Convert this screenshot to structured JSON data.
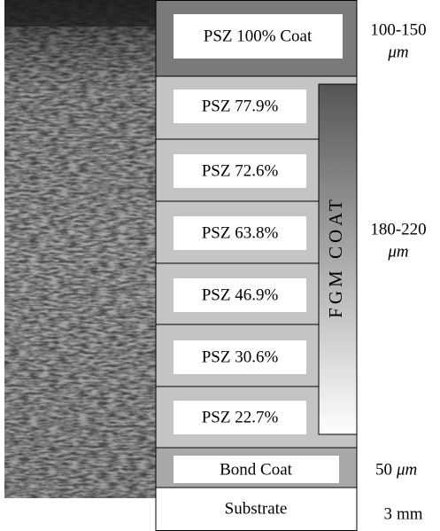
{
  "layers": [
    {
      "label": "PSZ 100% Coat"
    },
    {
      "label": "PSZ 77.9%"
    },
    {
      "label": "PSZ 72.6%"
    },
    {
      "label": "PSZ 63.8%"
    },
    {
      "label": "PSZ 46.9%"
    },
    {
      "label": "PSZ 30.6%"
    },
    {
      "label": "PSZ 22.7%"
    },
    {
      "label": "Bond Coat"
    },
    {
      "label": "Substrate"
    }
  ],
  "fgm_label": "FGM COAT",
  "thickness": [
    {
      "range": "100-150",
      "unit": "μm"
    },
    {
      "range": "180-220",
      "unit": "μm"
    },
    {
      "range": "50",
      "unit": "μm"
    },
    {
      "range": "3",
      "unit": "mm"
    }
  ]
}
